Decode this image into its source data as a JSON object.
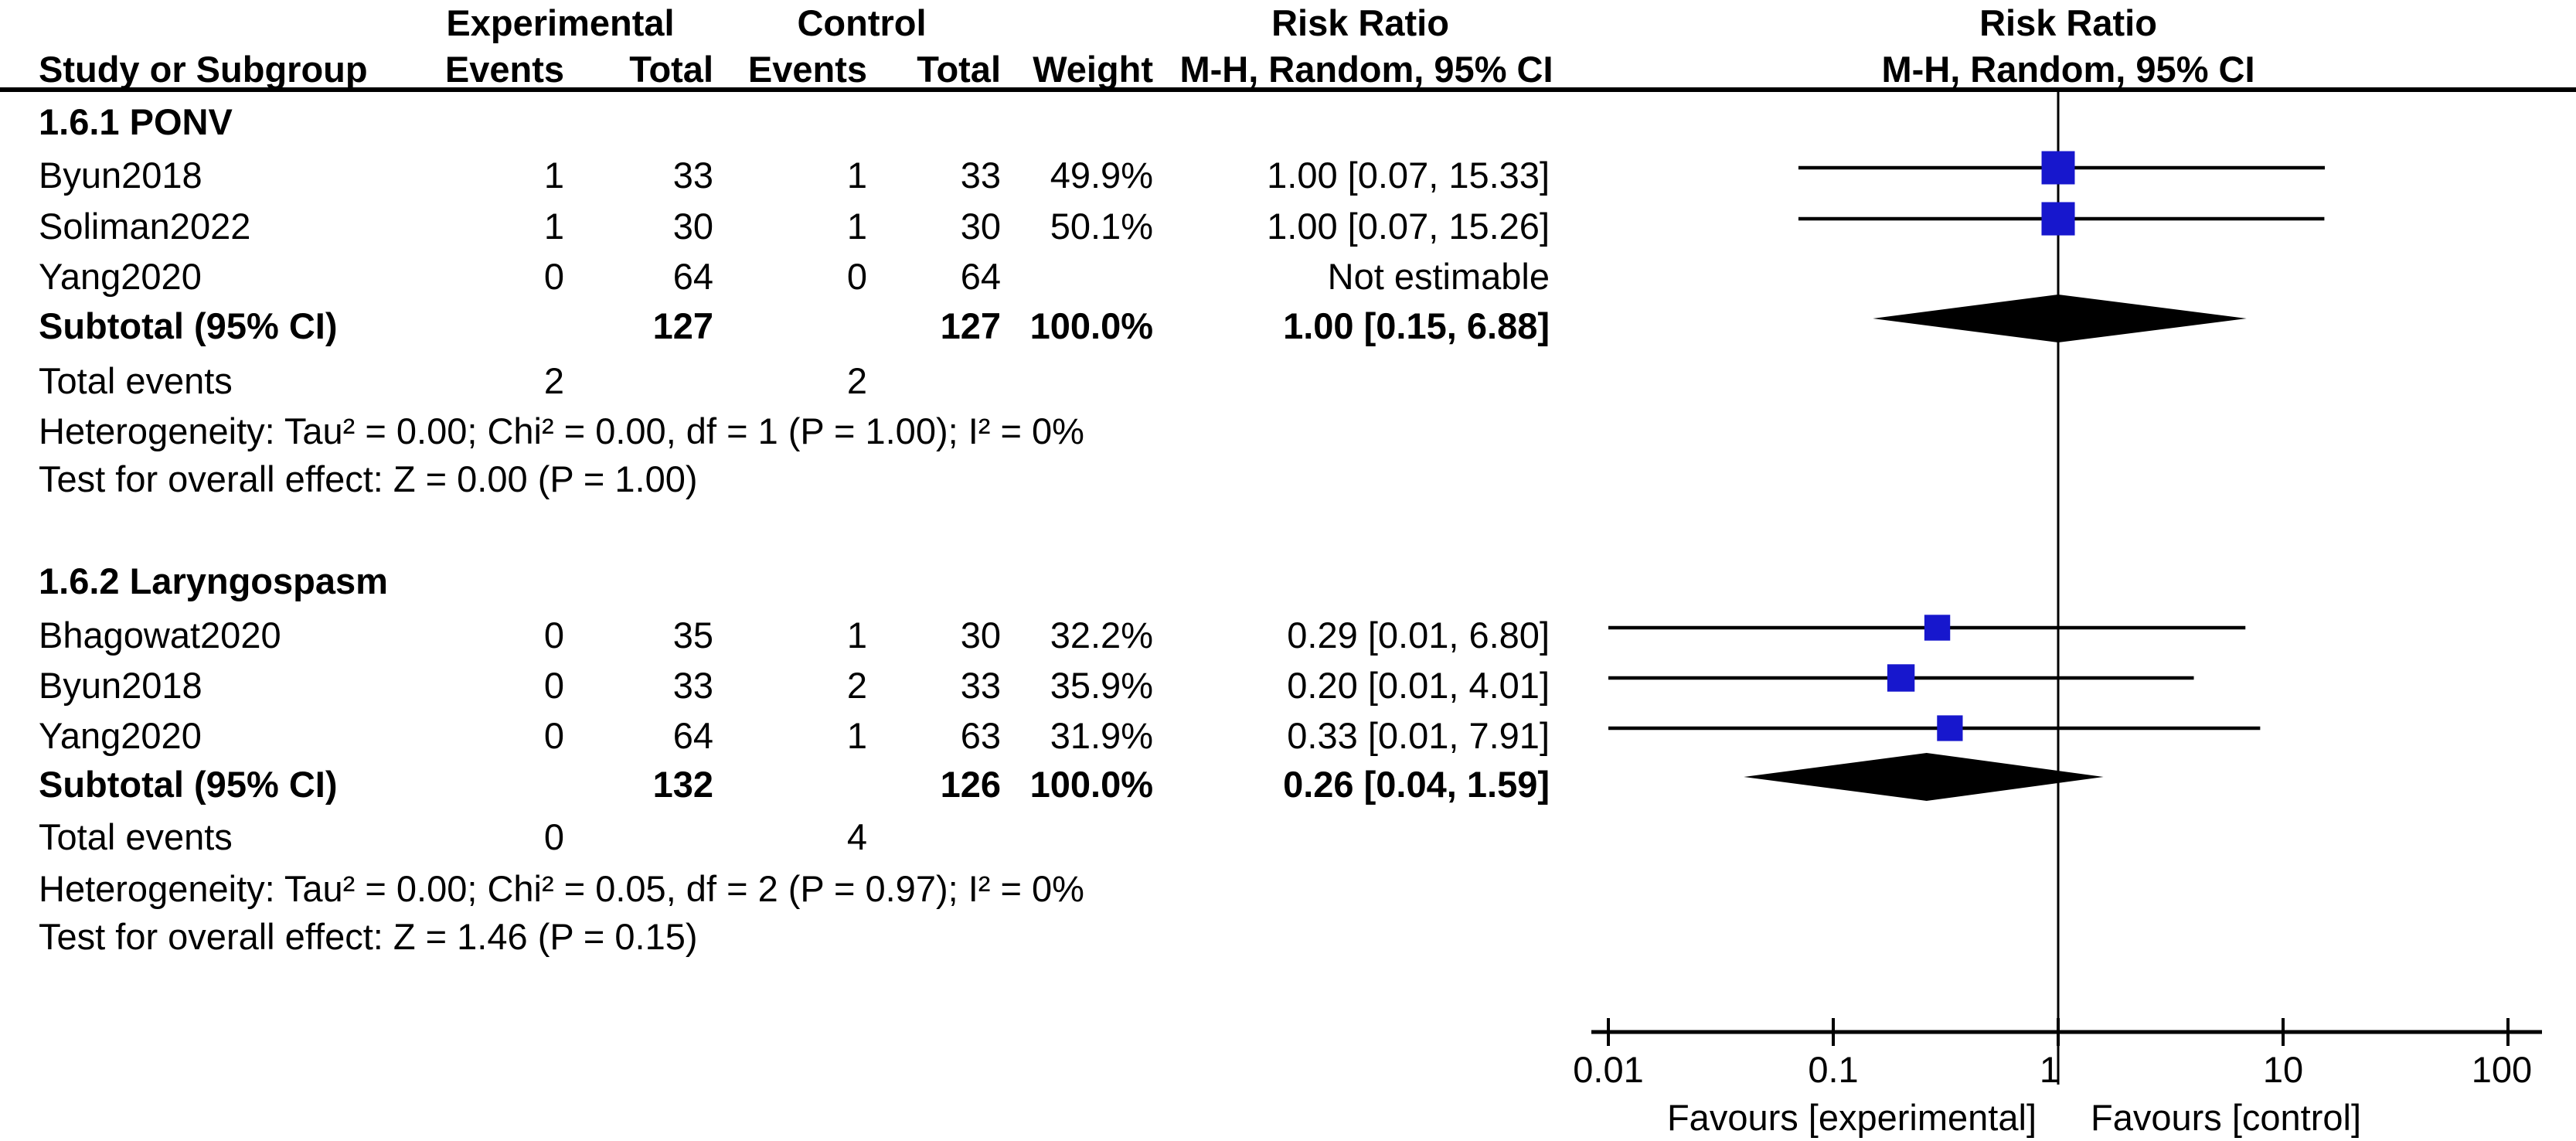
{
  "chart_data": {
    "type": "scatter",
    "subtype": "forest-plot-meta-analysis",
    "effect_measure": "Risk Ratio",
    "method": "M-H, Random, 95% CI",
    "x_scale": "log10",
    "x_ticks": [
      "0.01",
      "0.1",
      "1",
      "10",
      "100"
    ],
    "x_range": [
      0.01,
      100
    ],
    "axis": {
      "favours_left": "Favours [experimental]",
      "favours_right": "Favours [control]"
    },
    "headers": {
      "study": "Study or Subgroup",
      "group_experimental": "Experimental",
      "group_control": "Control",
      "events": "Events",
      "total": "Total",
      "weight": "Weight",
      "risk_ratio": "Risk Ratio",
      "method_ci": "M-H, Random, 95% CI"
    },
    "labels": {
      "subtotal": "Subtotal (95% CI)",
      "total_events": "Total events",
      "not_estimable": "Not estimable"
    },
    "colors": {
      "marker": "#1717cd",
      "summary": "#000000",
      "line": "#000000"
    },
    "subgroups": [
      {
        "title": "1.6.1 PONV",
        "studies": [
          {
            "name": "Byun2018",
            "exp_events": "1",
            "exp_total": "33",
            "ctrl_events": "1",
            "ctrl_total": "33",
            "weight": "49.9%",
            "rr": 1.0,
            "ci_low": 0.07,
            "ci_high": 15.33,
            "ci_text": "1.00 [0.07, 15.33]",
            "estimable": true
          },
          {
            "name": "Soliman2022",
            "exp_events": "1",
            "exp_total": "30",
            "ctrl_events": "1",
            "ctrl_total": "30",
            "weight": "50.1%",
            "rr": 1.0,
            "ci_low": 0.07,
            "ci_high": 15.26,
            "ci_text": "1.00 [0.07, 15.26]",
            "estimable": true
          },
          {
            "name": "Yang2020",
            "exp_events": "0",
            "exp_total": "64",
            "ctrl_events": "0",
            "ctrl_total": "64",
            "weight": "",
            "ci_text": "Not estimable",
            "estimable": false
          }
        ],
        "subtotal": {
          "exp_total": "127",
          "ctrl_total": "127",
          "weight": "100.0%",
          "rr": 1.0,
          "ci_low": 0.15,
          "ci_high": 6.88,
          "ci_text": "1.00 [0.15, 6.88]"
        },
        "total_events": {
          "exp": "2",
          "ctrl": "2"
        },
        "heterogeneity": "Heterogeneity: Tau² = 0.00; Chi² = 0.00, df = 1 (P = 1.00); I² = 0%",
        "overall_effect": "Test for overall effect: Z = 0.00 (P = 1.00)"
      },
      {
        "title": "1.6.2 Laryngospasm",
        "studies": [
          {
            "name": "Bhagowat2020",
            "exp_events": "0",
            "exp_total": "35",
            "ctrl_events": "1",
            "ctrl_total": "30",
            "weight": "32.2%",
            "rr": 0.29,
            "ci_low": 0.01,
            "ci_high": 6.8,
            "ci_text": "0.29 [0.01, 6.80]",
            "estimable": true
          },
          {
            "name": "Byun2018",
            "exp_events": "0",
            "exp_total": "33",
            "ctrl_events": "2",
            "ctrl_total": "33",
            "weight": "35.9%",
            "rr": 0.2,
            "ci_low": 0.01,
            "ci_high": 4.01,
            "ci_text": "0.20 [0.01, 4.01]",
            "estimable": true
          },
          {
            "name": "Yang2020",
            "exp_events": "0",
            "exp_total": "64",
            "ctrl_events": "1",
            "ctrl_total": "63",
            "weight": "31.9%",
            "rr": 0.33,
            "ci_low": 0.01,
            "ci_high": 7.91,
            "ci_text": "0.33 [0.01, 7.91]",
            "estimable": true
          }
        ],
        "subtotal": {
          "exp_total": "132",
          "ctrl_total": "126",
          "weight": "100.0%",
          "rr": 0.26,
          "ci_low": 0.04,
          "ci_high": 1.59,
          "ci_text": "0.26 [0.04, 1.59]"
        },
        "total_events": {
          "exp": "0",
          "ctrl": "4"
        },
        "heterogeneity": "Heterogeneity: Tau² = 0.00; Chi² = 0.05, df = 2 (P = 0.97); I² = 0%",
        "overall_effect": "Test for overall effect: Z = 1.46 (P = 0.15)"
      }
    ]
  }
}
